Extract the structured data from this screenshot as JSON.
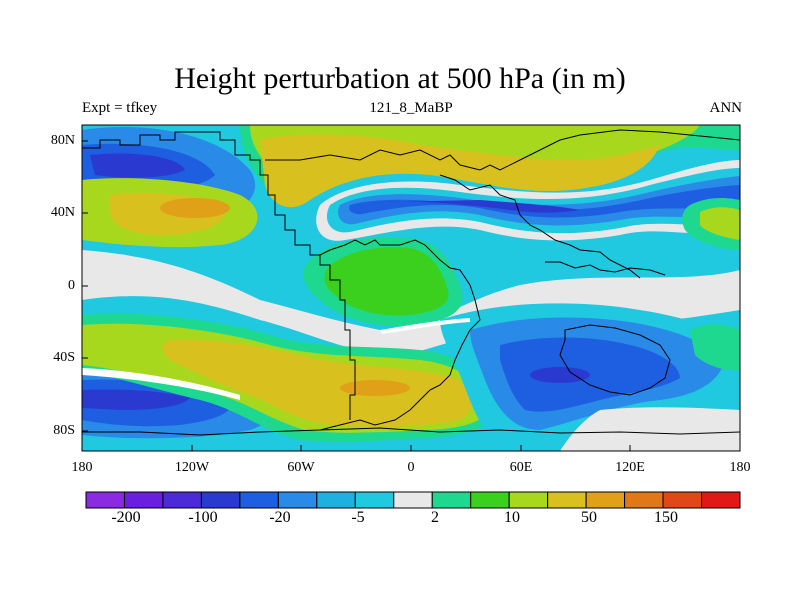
{
  "title": "Height perturbation at 500 hPa (in m)",
  "subtitle_left": "Expt = tfkey",
  "subtitle_center": "121_8_MaBP",
  "subtitle_right": "ANN",
  "y_ticks": [
    "80N",
    "40N",
    "0",
    "40S",
    "80S"
  ],
  "x_ticks": [
    "180",
    "120W",
    "60W",
    "0",
    "60E",
    "120E",
    "180"
  ],
  "colorbar": {
    "colors": [
      "#8a2be2",
      "#6a1ee0",
      "#4b2ad8",
      "#2a3ad0",
      "#1e5ee0",
      "#2a8ae8",
      "#1eb0e0",
      "#20c8e0",
      "#e8e8e8",
      "#1ed890",
      "#3cd01e",
      "#a8d81e",
      "#d8c01e",
      "#e0a018",
      "#e07818",
      "#e04818",
      "#e01818"
    ],
    "labels": [
      "-200",
      "-100",
      "-20",
      "-5",
      "2",
      "10",
      "50",
      "150"
    ]
  },
  "map_colors": {
    "neg_strong": "#2a3ad0",
    "neg_mid": "#1e5ee0",
    "neg_light": "#2a8ae8",
    "neg_weak": "#20c8e0",
    "neutral": "#e8e8e8",
    "pos_weak": "#1ed890",
    "pos_green": "#3cd01e",
    "pos_yellowgreen": "#a8d81e",
    "pos_yellow": "#d8c01e",
    "pos_orange": "#e0a018"
  }
}
